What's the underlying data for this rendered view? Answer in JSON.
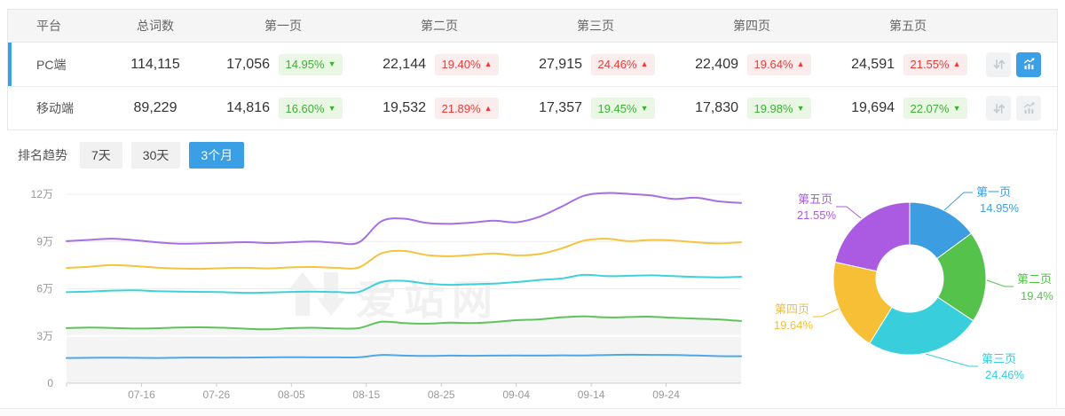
{
  "table": {
    "headers": [
      "平台",
      "总词数",
      "第一页",
      "第二页",
      "第三页",
      "第四页",
      "第五页"
    ],
    "rows": [
      {
        "id": "pc",
        "platform": "PC端",
        "total": "114,115",
        "selected": true,
        "pages": [
          {
            "value": "17,056",
            "pct": "14.95%",
            "dir": "down"
          },
          {
            "value": "22,144",
            "pct": "19.40%",
            "dir": "up"
          },
          {
            "value": "27,915",
            "pct": "24.46%",
            "dir": "up"
          },
          {
            "value": "22,409",
            "pct": "19.64%",
            "dir": "up"
          },
          {
            "value": "24,591",
            "pct": "21.55%",
            "dir": "up"
          }
        ],
        "actions": {
          "sort_active": false,
          "chart_active": true
        }
      },
      {
        "id": "mobile",
        "platform": "移动端",
        "total": "89,229",
        "selected": false,
        "pages": [
          {
            "value": "14,816",
            "pct": "16.60%",
            "dir": "down"
          },
          {
            "value": "19,532",
            "pct": "21.89%",
            "dir": "up"
          },
          {
            "value": "17,357",
            "pct": "19.45%",
            "dir": "down"
          },
          {
            "value": "17,830",
            "pct": "19.98%",
            "dir": "down"
          },
          {
            "value": "19,694",
            "pct": "22.07%",
            "dir": "down"
          }
        ],
        "actions": {
          "sort_active": false,
          "chart_active": false
        }
      }
    ]
  },
  "trend": {
    "title": "排名趋势",
    "tabs": [
      {
        "id": "7-days",
        "label": "7天",
        "active": false
      },
      {
        "id": "30-days",
        "label": "30天",
        "active": false
      },
      {
        "id": "3-months",
        "label": "3个月",
        "active": true
      }
    ]
  },
  "watermark": "爱站网",
  "colors": {
    "accent_blue": "#3b9fe5",
    "rise_red": "#e33e3c",
    "fall_green": "#3db135",
    "badge_red_bg": "#fdecec",
    "badge_green_bg": "#eaf7e4"
  },
  "chart_data": [
    {
      "type": "line",
      "title": "排名趋势 (3个月)",
      "unit": "万 (10,000 keywords), cumulative stacked totals per page depth",
      "x_range_days": [
        0,
        90
      ],
      "sample_interval_days": 3,
      "x_ticks": [
        {
          "day": 10,
          "label": "07-16"
        },
        {
          "day": 20,
          "label": "07-26"
        },
        {
          "day": 30,
          "label": "08-05"
        },
        {
          "day": 40,
          "label": "08-15"
        },
        {
          "day": 50,
          "label": "08-25"
        },
        {
          "day": 60,
          "label": "09-04"
        },
        {
          "day": 70,
          "label": "09-14"
        },
        {
          "day": 80,
          "label": "09-24"
        }
      ],
      "y_ticklabels": [
        "0",
        "3万",
        "6万",
        "9万",
        "12万"
      ],
      "ylim_wan": [
        0,
        12
      ],
      "grid": true,
      "series": [
        {
          "name": "第一页",
          "color": "#4fa6e8",
          "values_wan": [
            1.6,
            1.61,
            1.62,
            1.61,
            1.6,
            1.62,
            1.63,
            1.62,
            1.63,
            1.64,
            1.65,
            1.64,
            1.64,
            1.65,
            1.79,
            1.75,
            1.73,
            1.75,
            1.74,
            1.75,
            1.76,
            1.75,
            1.77,
            1.76,
            1.79,
            1.81,
            1.8,
            1.79,
            1.76,
            1.72,
            1.71
          ]
        },
        {
          "name": "第二页",
          "color": "#5fc35c",
          "area_fill": "#f4f4f4",
          "values_wan": [
            3.5,
            3.53,
            3.51,
            3.47,
            3.49,
            3.54,
            3.55,
            3.52,
            3.46,
            3.42,
            3.5,
            3.52,
            3.48,
            3.5,
            3.9,
            3.82,
            3.78,
            3.84,
            3.82,
            3.88,
            4.0,
            4.05,
            4.18,
            4.25,
            4.18,
            4.2,
            4.22,
            4.15,
            4.1,
            4.05,
            3.95
          ]
        },
        {
          "name": "第三页",
          "color": "#3fd0dc",
          "values_wan": [
            5.78,
            5.82,
            5.88,
            5.9,
            5.85,
            5.82,
            5.8,
            5.78,
            5.74,
            5.76,
            5.8,
            5.82,
            5.79,
            5.8,
            6.42,
            6.5,
            6.32,
            6.25,
            6.28,
            6.32,
            6.42,
            6.55,
            6.65,
            6.88,
            6.8,
            6.82,
            6.85,
            6.8,
            6.75,
            6.72,
            6.76
          ]
        },
        {
          "name": "第四页",
          "color": "#f7c33f",
          "values_wan": [
            7.32,
            7.4,
            7.5,
            7.44,
            7.34,
            7.28,
            7.26,
            7.31,
            7.33,
            7.29,
            7.36,
            7.38,
            7.33,
            7.35,
            8.25,
            8.4,
            8.14,
            8.06,
            8.14,
            8.24,
            8.12,
            8.2,
            8.55,
            9.05,
            9.18,
            9.02,
            9.1,
            9.06,
            8.95,
            8.88,
            8.95
          ]
        },
        {
          "name": "第五页",
          "color": "#a76fe4",
          "values_wan": [
            9.02,
            9.1,
            9.18,
            9.08,
            8.95,
            8.86,
            8.88,
            8.92,
            8.96,
            8.9,
            8.95,
            9.0,
            8.92,
            8.94,
            10.28,
            10.45,
            10.18,
            10.12,
            10.2,
            10.32,
            10.22,
            10.55,
            11.2,
            11.9,
            12.08,
            12.02,
            11.92,
            11.7,
            11.78,
            11.55,
            11.45
          ]
        }
      ]
    },
    {
      "type": "pie",
      "style": "donut",
      "slices": [
        {
          "label": "第一页",
          "pct": 14.95,
          "pct_label": "14.95%",
          "color": "#3c9ee0"
        },
        {
          "label": "第二页",
          "pct": 19.4,
          "pct_label": "19.4%",
          "color": "#55c24b"
        },
        {
          "label": "第三页",
          "pct": 24.46,
          "pct_label": "24.46%",
          "color": "#38cedc"
        },
        {
          "label": "第四页",
          "pct": 19.64,
          "pct_label": "19.64%",
          "color": "#f6bf35"
        },
        {
          "label": "第五页",
          "pct": 21.55,
          "pct_label": "21.55%",
          "color": "#ab5be2"
        }
      ]
    }
  ]
}
